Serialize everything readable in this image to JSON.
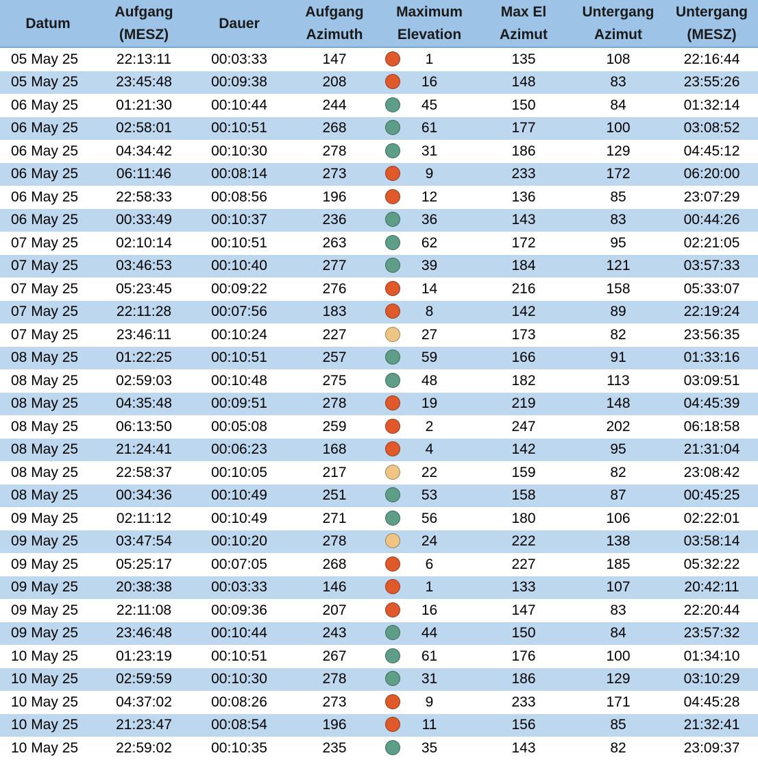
{
  "colors": {
    "header_bg": "#9dc3e6",
    "row_alt_bg": "#bdd7ee",
    "row_bg": "#ffffff",
    "status_red": "#e0592b",
    "status_green": "#5e9e88",
    "status_yellow": "#eec585"
  },
  "headers": [
    {
      "line1": "Datum",
      "line2": ""
    },
    {
      "line1": "Aufgang",
      "line2": "(MESZ)"
    },
    {
      "line1": "Dauer",
      "line2": ""
    },
    {
      "line1": "Aufgang",
      "line2": "Azimuth"
    },
    {
      "line1": "Maximum",
      "line2": "Elevation"
    },
    {
      "line1": "Max El",
      "line2": "Azimut"
    },
    {
      "line1": "Untergang",
      "line2": "Azimut"
    },
    {
      "line1": "Untergang",
      "line2": "(MESZ)"
    }
  ],
  "rows": [
    {
      "datum": "05 May 25",
      "aufgang": "22:13:11",
      "dauer": "00:03:33",
      "auf_az": "147",
      "status": "red",
      "max_el": "1",
      "max_el_az": "135",
      "unt_az": "108",
      "untergang": "22:16:44"
    },
    {
      "datum": "05 May 25",
      "aufgang": "23:45:48",
      "dauer": "00:09:38",
      "auf_az": "208",
      "status": "red",
      "max_el": "16",
      "max_el_az": "148",
      "unt_az": "83",
      "untergang": "23:55:26"
    },
    {
      "datum": "06 May 25",
      "aufgang": "01:21:30",
      "dauer": "00:10:44",
      "auf_az": "244",
      "status": "green",
      "max_el": "45",
      "max_el_az": "150",
      "unt_az": "84",
      "untergang": "01:32:14"
    },
    {
      "datum": "06 May 25",
      "aufgang": "02:58:01",
      "dauer": "00:10:51",
      "auf_az": "268",
      "status": "green",
      "max_el": "61",
      "max_el_az": "177",
      "unt_az": "100",
      "untergang": "03:08:52"
    },
    {
      "datum": "06 May 25",
      "aufgang": "04:34:42",
      "dauer": "00:10:30",
      "auf_az": "278",
      "status": "green",
      "max_el": "31",
      "max_el_az": "186",
      "unt_az": "129",
      "untergang": "04:45:12"
    },
    {
      "datum": "06 May 25",
      "aufgang": "06:11:46",
      "dauer": "00:08:14",
      "auf_az": "273",
      "status": "red",
      "max_el": "9",
      "max_el_az": "233",
      "unt_az": "172",
      "untergang": "06:20:00"
    },
    {
      "datum": "06 May 25",
      "aufgang": "22:58:33",
      "dauer": "00:08:56",
      "auf_az": "196",
      "status": "red",
      "max_el": "12",
      "max_el_az": "136",
      "unt_az": "85",
      "untergang": "23:07:29"
    },
    {
      "datum": "06 May 25",
      "aufgang": "00:33:49",
      "dauer": "00:10:37",
      "auf_az": "236",
      "status": "green",
      "max_el": "36",
      "max_el_az": "143",
      "unt_az": "83",
      "untergang": "00:44:26"
    },
    {
      "datum": "07 May 25",
      "aufgang": "02:10:14",
      "dauer": "00:10:51",
      "auf_az": "263",
      "status": "green",
      "max_el": "62",
      "max_el_az": "172",
      "unt_az": "95",
      "untergang": "02:21:05"
    },
    {
      "datum": "07 May 25",
      "aufgang": "03:46:53",
      "dauer": "00:10:40",
      "auf_az": "277",
      "status": "green",
      "max_el": "39",
      "max_el_az": "184",
      "unt_az": "121",
      "untergang": "03:57:33"
    },
    {
      "datum": "07 May 25",
      "aufgang": "05:23:45",
      "dauer": "00:09:22",
      "auf_az": "276",
      "status": "red",
      "max_el": "14",
      "max_el_az": "216",
      "unt_az": "158",
      "untergang": "05:33:07"
    },
    {
      "datum": "07 May 25",
      "aufgang": "22:11:28",
      "dauer": "00:07:56",
      "auf_az": "183",
      "status": "red",
      "max_el": "8",
      "max_el_az": "142",
      "unt_az": "89",
      "untergang": "22:19:24"
    },
    {
      "datum": "07 May 25",
      "aufgang": "23:46:11",
      "dauer": "00:10:24",
      "auf_az": "227",
      "status": "yellow",
      "max_el": "27",
      "max_el_az": "173",
      "unt_az": "82",
      "untergang": "23:56:35"
    },
    {
      "datum": "08 May 25",
      "aufgang": "01:22:25",
      "dauer": "00:10:51",
      "auf_az": "257",
      "status": "green",
      "max_el": "59",
      "max_el_az": "166",
      "unt_az": "91",
      "untergang": "01:33:16"
    },
    {
      "datum": "08 May 25",
      "aufgang": "02:59:03",
      "dauer": "00:10:48",
      "auf_az": "275",
      "status": "green",
      "max_el": "48",
      "max_el_az": "182",
      "unt_az": "113",
      "untergang": "03:09:51"
    },
    {
      "datum": "08 May 25",
      "aufgang": "04:35:48",
      "dauer": "00:09:51",
      "auf_az": "278",
      "status": "red",
      "max_el": "19",
      "max_el_az": "219",
      "unt_az": "148",
      "untergang": "04:45:39"
    },
    {
      "datum": "08 May 25",
      "aufgang": "06:13:50",
      "dauer": "00:05:08",
      "auf_az": "259",
      "status": "red",
      "max_el": "2",
      "max_el_az": "247",
      "unt_az": "202",
      "untergang": "06:18:58"
    },
    {
      "datum": "08 May 25",
      "aufgang": "21:24:41",
      "dauer": "00:06:23",
      "auf_az": "168",
      "status": "red",
      "max_el": "4",
      "max_el_az": "142",
      "unt_az": "95",
      "untergang": "21:31:04"
    },
    {
      "datum": "08 May 25",
      "aufgang": "22:58:37",
      "dauer": "00:10:05",
      "auf_az": "217",
      "status": "yellow",
      "max_el": "22",
      "max_el_az": "159",
      "unt_az": "82",
      "untergang": "23:08:42"
    },
    {
      "datum": "08 May 25",
      "aufgang": "00:34:36",
      "dauer": "00:10:49",
      "auf_az": "251",
      "status": "green",
      "max_el": "53",
      "max_el_az": "158",
      "unt_az": "87",
      "untergang": "00:45:25"
    },
    {
      "datum": "09 May 25",
      "aufgang": "02:11:12",
      "dauer": "00:10:49",
      "auf_az": "271",
      "status": "green",
      "max_el": "56",
      "max_el_az": "180",
      "unt_az": "106",
      "untergang": "02:22:01"
    },
    {
      "datum": "09 May 25",
      "aufgang": "03:47:54",
      "dauer": "00:10:20",
      "auf_az": "278",
      "status": "yellow",
      "max_el": "24",
      "max_el_az": "222",
      "unt_az": "138",
      "untergang": "03:58:14"
    },
    {
      "datum": "09 May 25",
      "aufgang": "05:25:17",
      "dauer": "00:07:05",
      "auf_az": "268",
      "status": "red",
      "max_el": "6",
      "max_el_az": "227",
      "unt_az": "185",
      "untergang": "05:32:22"
    },
    {
      "datum": "09 May 25",
      "aufgang": "20:38:38",
      "dauer": "00:03:33",
      "auf_az": "146",
      "status": "red",
      "max_el": "1",
      "max_el_az": "133",
      "unt_az": "107",
      "untergang": "20:42:11"
    },
    {
      "datum": "09 May 25",
      "aufgang": "22:11:08",
      "dauer": "00:09:36",
      "auf_az": "207",
      "status": "red",
      "max_el": "16",
      "max_el_az": "147",
      "unt_az": "83",
      "untergang": "22:20:44"
    },
    {
      "datum": "09 May 25",
      "aufgang": "23:46:48",
      "dauer": "00:10:44",
      "auf_az": "243",
      "status": "green",
      "max_el": "44",
      "max_el_az": "150",
      "unt_az": "84",
      "untergang": "23:57:32"
    },
    {
      "datum": "10 May 25",
      "aufgang": "01:23:19",
      "dauer": "00:10:51",
      "auf_az": "267",
      "status": "green",
      "max_el": "61",
      "max_el_az": "176",
      "unt_az": "100",
      "untergang": "01:34:10"
    },
    {
      "datum": "10 May 25",
      "aufgang": "02:59:59",
      "dauer": "00:10:30",
      "auf_az": "278",
      "status": "green",
      "max_el": "31",
      "max_el_az": "186",
      "unt_az": "129",
      "untergang": "03:10:29"
    },
    {
      "datum": "10 May 25",
      "aufgang": "04:37:02",
      "dauer": "00:08:26",
      "auf_az": "273",
      "status": "red",
      "max_el": "9",
      "max_el_az": "233",
      "unt_az": "171",
      "untergang": "04:45:28"
    },
    {
      "datum": "10 May 25",
      "aufgang": "21:23:47",
      "dauer": "00:08:54",
      "auf_az": "196",
      "status": "red",
      "max_el": "11",
      "max_el_az": "156",
      "unt_az": "85",
      "untergang": "21:32:41"
    },
    {
      "datum": "10 May 25",
      "aufgang": "22:59:02",
      "dauer": "00:10:35",
      "auf_az": "235",
      "status": "green",
      "max_el": "35",
      "max_el_az": "143",
      "unt_az": "82",
      "untergang": "23:09:37"
    }
  ]
}
